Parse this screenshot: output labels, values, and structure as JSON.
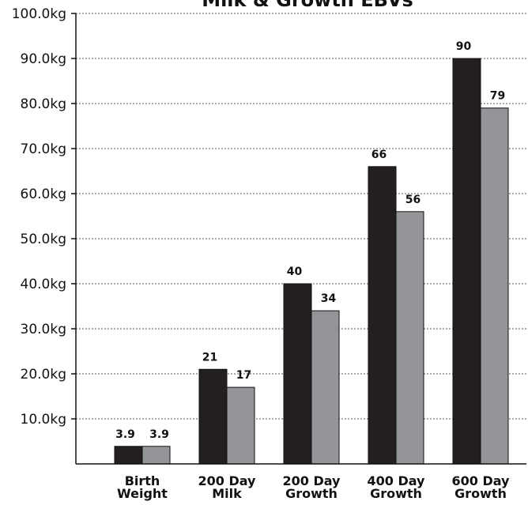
{
  "chart_data": {
    "type": "bar",
    "title": "Milk & Growth EBVs",
    "categories": [
      [
        "Birth",
        "Weight"
      ],
      [
        "200 Day",
        "Milk"
      ],
      [
        "200 Day",
        "Growth"
      ],
      [
        "400 Day",
        "Growth"
      ],
      [
        "600 Day",
        "Growth"
      ]
    ],
    "series": [
      {
        "values": [
          3.9,
          21,
          40,
          66,
          90
        ],
        "labels": [
          "3.9",
          "21",
          "40",
          "66",
          "90"
        ],
        "color": "#231f20"
      },
      {
        "values": [
          3.9,
          17,
          34,
          56,
          79
        ],
        "labels": [
          "3.9",
          "17",
          "34",
          "56",
          "79"
        ],
        "color": "#939598"
      }
    ],
    "yticks": [
      10,
      20,
      30,
      40,
      50,
      60,
      70,
      80,
      90,
      100
    ],
    "ytick_labels": [
      "10.0kg",
      "20.0kg",
      "30.0kg",
      "40.0kg",
      "50.0kg",
      "60.0kg",
      "70.0kg",
      "80.0kg",
      "90.0kg",
      "100.0kg"
    ],
    "ylim": [
      0,
      100
    ],
    "grid": true,
    "legend": false
  }
}
